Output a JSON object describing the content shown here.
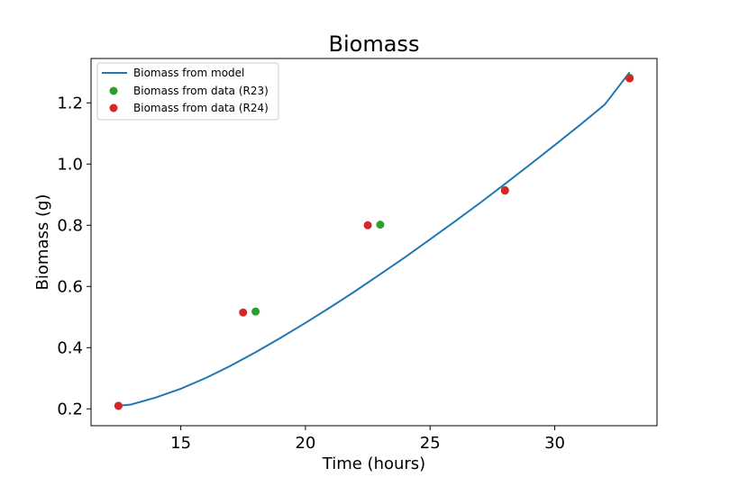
{
  "chart_data": {
    "type": "scatter",
    "title": "Biomass",
    "xlabel": "Time (hours)",
    "ylabel": "Biomass (g)",
    "xlim": [
      11.4,
      34.1
    ],
    "ylim": [
      0.145,
      1.345
    ],
    "xticks": [
      15,
      20,
      25,
      30
    ],
    "yticks": [
      0.2,
      0.4,
      0.6,
      0.8,
      1.0,
      1.2
    ],
    "xtick_labels": [
      "15",
      "20",
      "25",
      "30"
    ],
    "ytick_labels": [
      "0.2",
      "0.4",
      "0.6",
      "0.8",
      "1.0",
      "1.2"
    ],
    "grid": false,
    "legend_position": "top-left",
    "series": [
      {
        "name": "Biomass from model",
        "kind": "line",
        "color": "#1f77b4",
        "x": [
          12.5,
          13.0,
          14.0,
          15.0,
          16.0,
          17.0,
          18.0,
          19.0,
          20.0,
          21.0,
          22.0,
          23.0,
          24.0,
          25.0,
          26.0,
          27.0,
          28.0,
          29.0,
          30.0,
          31.0,
          32.0,
          33.0
        ],
        "y": [
          0.21,
          0.214,
          0.237,
          0.266,
          0.301,
          0.341,
          0.385,
          0.432,
          0.481,
          0.532,
          0.585,
          0.64,
          0.696,
          0.754,
          0.813,
          0.873,
          0.935,
          0.998,
          1.062,
          1.127,
          1.194,
          1.3
        ]
      },
      {
        "name": "Biomass from data (R23)",
        "kind": "scatter",
        "color": "#2ca02c",
        "x": [
          12.5,
          18.0,
          23.0,
          28.0,
          33.0
        ],
        "y": [
          0.21,
          0.518,
          0.802,
          0.915,
          1.282
        ]
      },
      {
        "name": "Biomass from data (R24)",
        "kind": "scatter",
        "color": "#d62728",
        "x": [
          12.5,
          17.5,
          22.5,
          28.0,
          33.0
        ],
        "y": [
          0.21,
          0.515,
          0.8,
          0.913,
          1.28
        ]
      }
    ]
  }
}
